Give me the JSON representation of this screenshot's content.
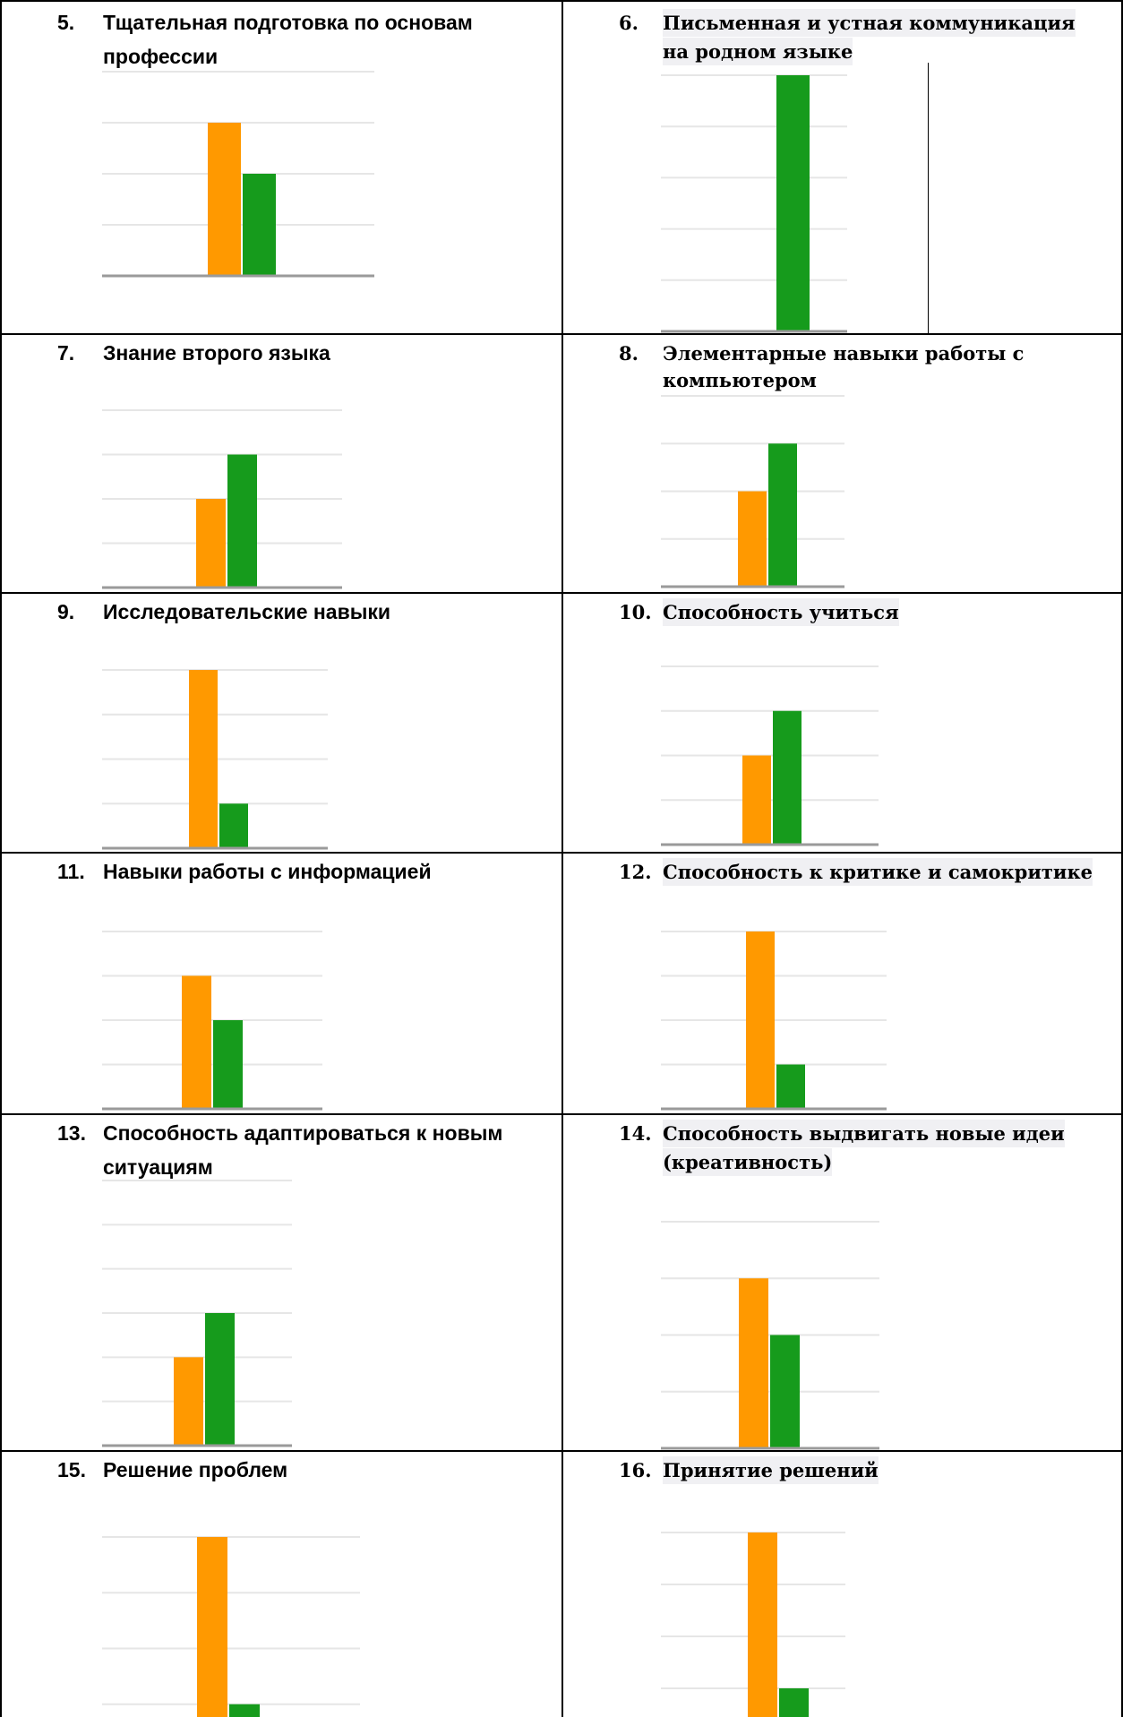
{
  "colors": {
    "orange": "#ff9900",
    "green": "#169b1c",
    "grid": "#e6e6e6",
    "baseline": "#9a9a9a"
  },
  "chart_data": [
    {
      "type": "bar",
      "number": "5.",
      "title_lines": [
        "Тщательная подготовка по основам",
        "профессии"
      ],
      "series": [
        {
          "values": [
            3
          ]
        },
        {
          "values": [
            2
          ]
        }
      ],
      "ylim": [
        0,
        4
      ]
    },
    {
      "type": "bar",
      "number": "6.",
      "title_lines": [
        "Письменная и устная коммуникация",
        "на родном языке"
      ],
      "series": [
        {
          "values": [
            0
          ]
        },
        {
          "values": [
            5
          ]
        }
      ],
      "ylim": [
        0,
        5
      ]
    },
    {
      "type": "bar",
      "number": "7.",
      "title_lines": [
        "Знание второго языка"
      ],
      "series": [
        {
          "values": [
            2
          ]
        },
        {
          "values": [
            3
          ]
        }
      ],
      "ylim": [
        0,
        4
      ]
    },
    {
      "type": "bar",
      "number": "8.",
      "title_lines": [
        "Элементарные навыки работы с",
        "компьютером"
      ],
      "series": [
        {
          "values": [
            2
          ]
        },
        {
          "values": [
            3
          ]
        }
      ],
      "ylim": [
        0,
        4
      ]
    },
    {
      "type": "bar",
      "number": "9.",
      "title_lines": [
        "Исследовательские навыки"
      ],
      "series": [
        {
          "values": [
            4
          ]
        },
        {
          "values": [
            1
          ]
        }
      ],
      "ylim": [
        0,
        4
      ]
    },
    {
      "type": "bar",
      "number": "10.",
      "title_lines": [
        "Способность учиться"
      ],
      "series": [
        {
          "values": [
            2
          ]
        },
        {
          "values": [
            3
          ]
        }
      ],
      "ylim": [
        0,
        4
      ]
    },
    {
      "type": "bar",
      "number": "11.",
      "title_lines": [
        "Навыки работы с информацией"
      ],
      "series": [
        {
          "values": [
            3
          ]
        },
        {
          "values": [
            2
          ]
        }
      ],
      "ylim": [
        0,
        4
      ]
    },
    {
      "type": "bar",
      "number": "12.",
      "title_lines": [
        "Способность к критике и самокритике"
      ],
      "series": [
        {
          "values": [
            4
          ]
        },
        {
          "values": [
            1
          ]
        }
      ],
      "ylim": [
        0,
        4
      ]
    },
    {
      "type": "bar",
      "number": "13.",
      "title_lines": [
        "Способность адаптироваться к новым",
        "ситуациям"
      ],
      "series": [
        {
          "values": [
            2
          ]
        },
        {
          "values": [
            3
          ]
        }
      ],
      "ylim": [
        0,
        6
      ]
    },
    {
      "type": "bar",
      "number": "14.",
      "title_lines": [
        "Способность выдвигать новые идеи",
        "(креативность)"
      ],
      "series": [
        {
          "values": [
            3
          ]
        },
        {
          "values": [
            2
          ]
        }
      ],
      "ylim": [
        0,
        4
      ]
    },
    {
      "type": "bar",
      "number": "15.",
      "title_lines": [
        "Решение проблем"
      ],
      "series": [
        {
          "values": [
            4
          ]
        },
        {
          "values": [
            1
          ]
        }
      ],
      "ylim": [
        0,
        4
      ]
    },
    {
      "type": "bar",
      "number": "16.",
      "title_lines": [
        "Принятие решений"
      ],
      "series": [
        {
          "values": [
            4
          ]
        },
        {
          "values": [
            1
          ]
        }
      ],
      "ylim": [
        0,
        4
      ]
    }
  ]
}
